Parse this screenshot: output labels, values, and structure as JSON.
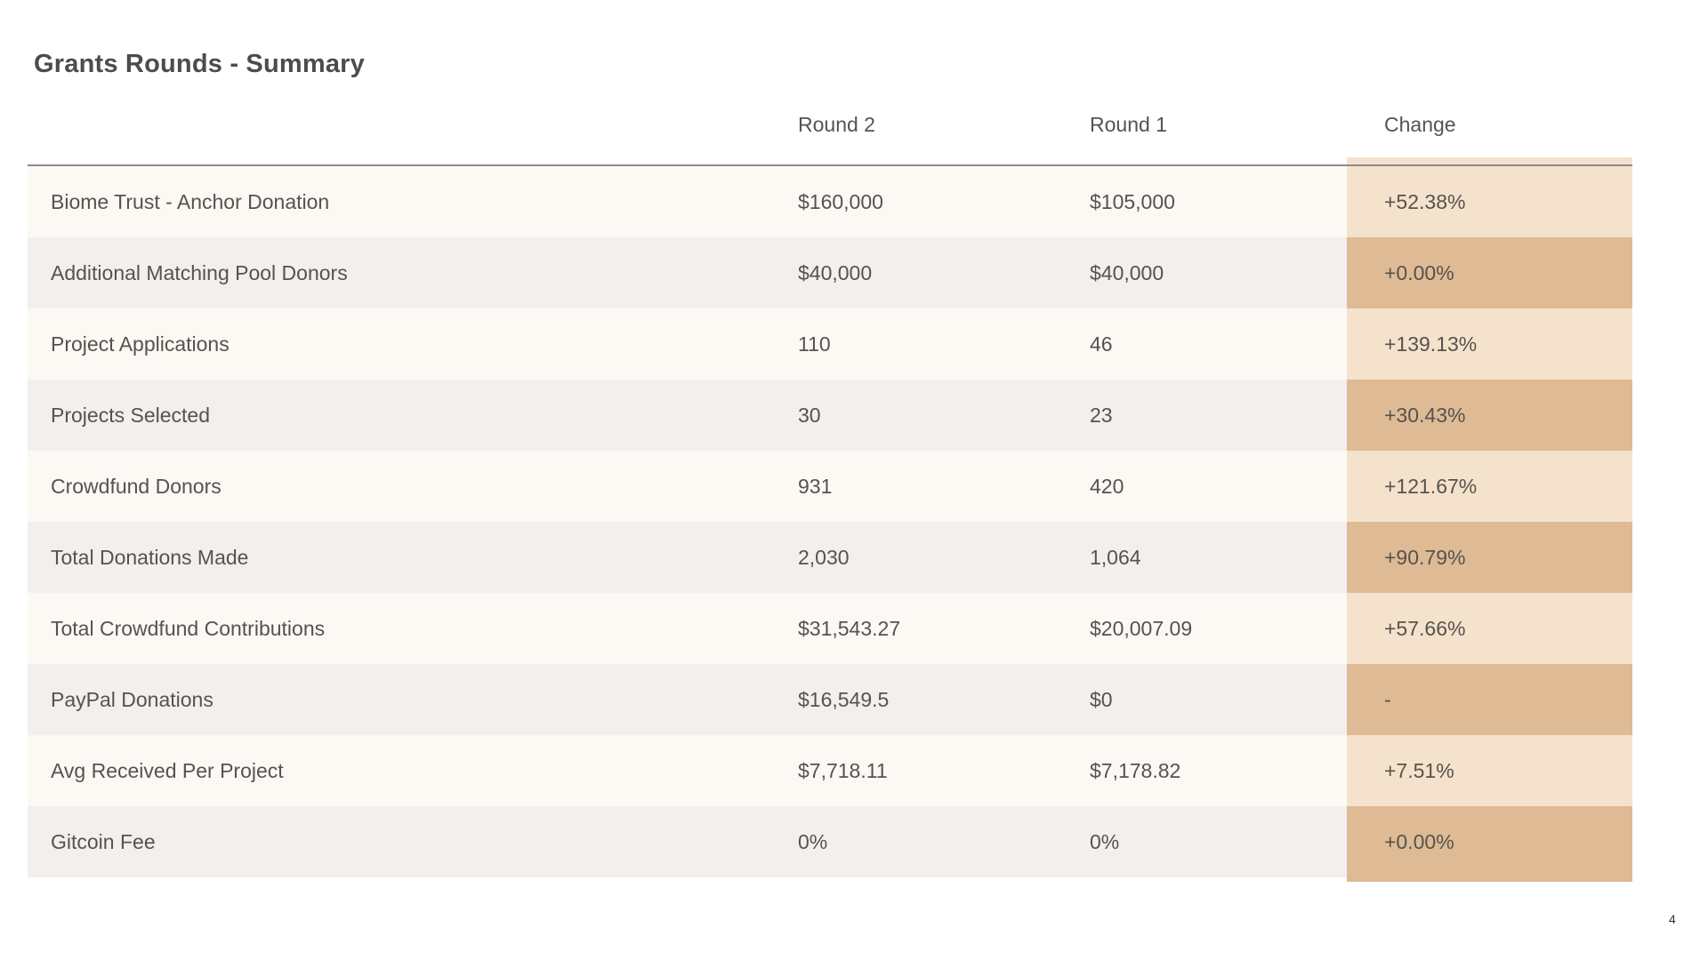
{
  "page": {
    "title": "Grants Rounds - Summary",
    "page_number": "4"
  },
  "table": {
    "columns": [
      "",
      "Round 2",
      "Round 1",
      "Change"
    ],
    "rows": [
      {
        "label": "Biome Trust - Anchor Donation",
        "round2": "$160,000",
        "round1": "$105,000",
        "change": "+52.38%"
      },
      {
        "label": "Additional Matching Pool Donors",
        "round2": "$40,000",
        "round1": "$40,000",
        "change": "+0.00%"
      },
      {
        "label": "Project Applications",
        "round2": "110",
        "round1": "46",
        "change": "+139.13%"
      },
      {
        "label": "Projects Selected",
        "round2": "30",
        "round1": "23",
        "change": "+30.43%"
      },
      {
        "label": "Crowdfund Donors",
        "round2": "931",
        "round1": "420",
        "change": "+121.67%"
      },
      {
        "label": "Total Donations Made",
        "round2": "2,030",
        "round1": "1,064",
        "change": "+90.79%"
      },
      {
        "label": "Total Crowdfund Contributions",
        "round2": "$31,543.27",
        "round1": "$20,007.09",
        "change": "+57.66%"
      },
      {
        "label": "PayPal Donations",
        "round2": "$16,549.5",
        "round1": "$0",
        "change": "-"
      },
      {
        "label": "Avg Received Per Project",
        "round2": "$7,718.11",
        "round1": "$7,178.82",
        "change": "+7.51%"
      },
      {
        "label": "Gitcoin Fee",
        "round2": "0%",
        "round1": "0%",
        "change": "+0.00%"
      }
    ]
  },
  "colors": {
    "row_odd_bg": "#fcf9f4",
    "row_even_bg": "#f3efec",
    "change_odd_bg": "#f5e2cc",
    "change_even_bg": "#debb95",
    "header_divider": "#8b8b8b",
    "body_text": "#56534e",
    "title_text": "#4c4c4c"
  }
}
